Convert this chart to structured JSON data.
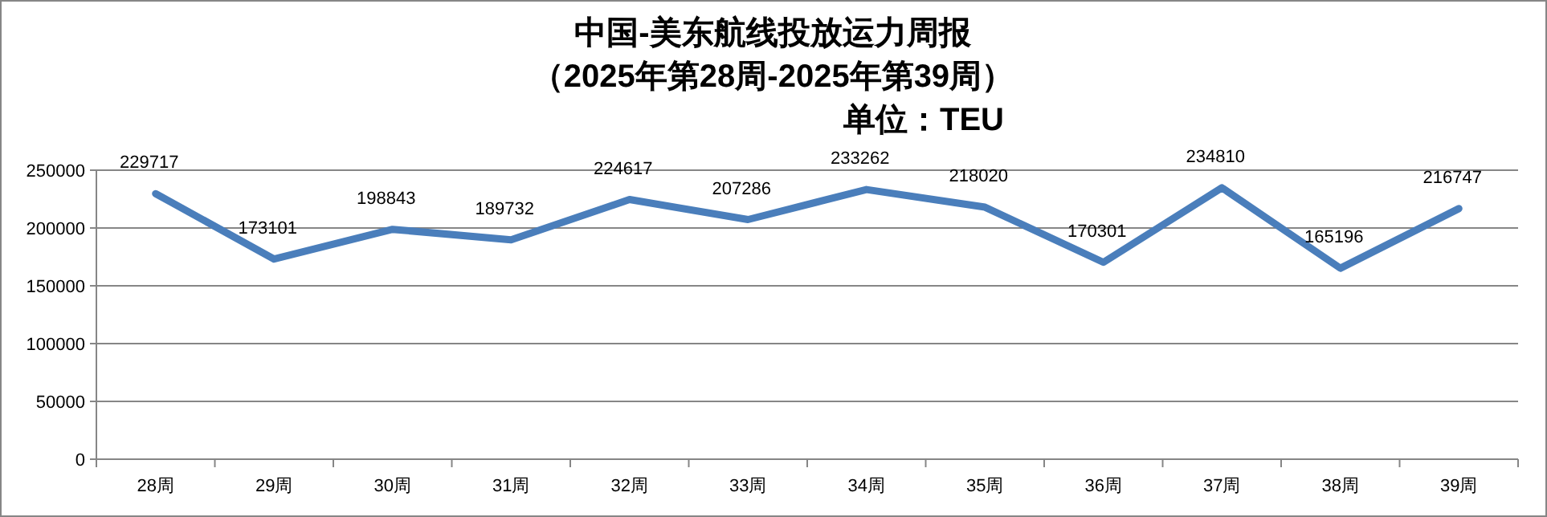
{
  "chart_data": {
    "type": "line",
    "title": "中国-美东航线投放运力周报",
    "subtitle": "（2025年第28周-2025年第39周）",
    "annotations": [
      "单位：TEU"
    ],
    "categories": [
      "28周",
      "29周",
      "30周",
      "31周",
      "32周",
      "33周",
      "34周",
      "35周",
      "36周",
      "37周",
      "38周",
      "39周"
    ],
    "values": [
      229717,
      173101,
      198843,
      189732,
      224617,
      207286,
      233262,
      218020,
      170301,
      234810,
      165196,
      216747
    ],
    "color": "#4a7ebb",
    "ylim": [
      0,
      250000
    ],
    "yticks": [
      0,
      50000,
      100000,
      150000,
      200000,
      250000
    ],
    "grid": "y",
    "data_labels": true
  }
}
